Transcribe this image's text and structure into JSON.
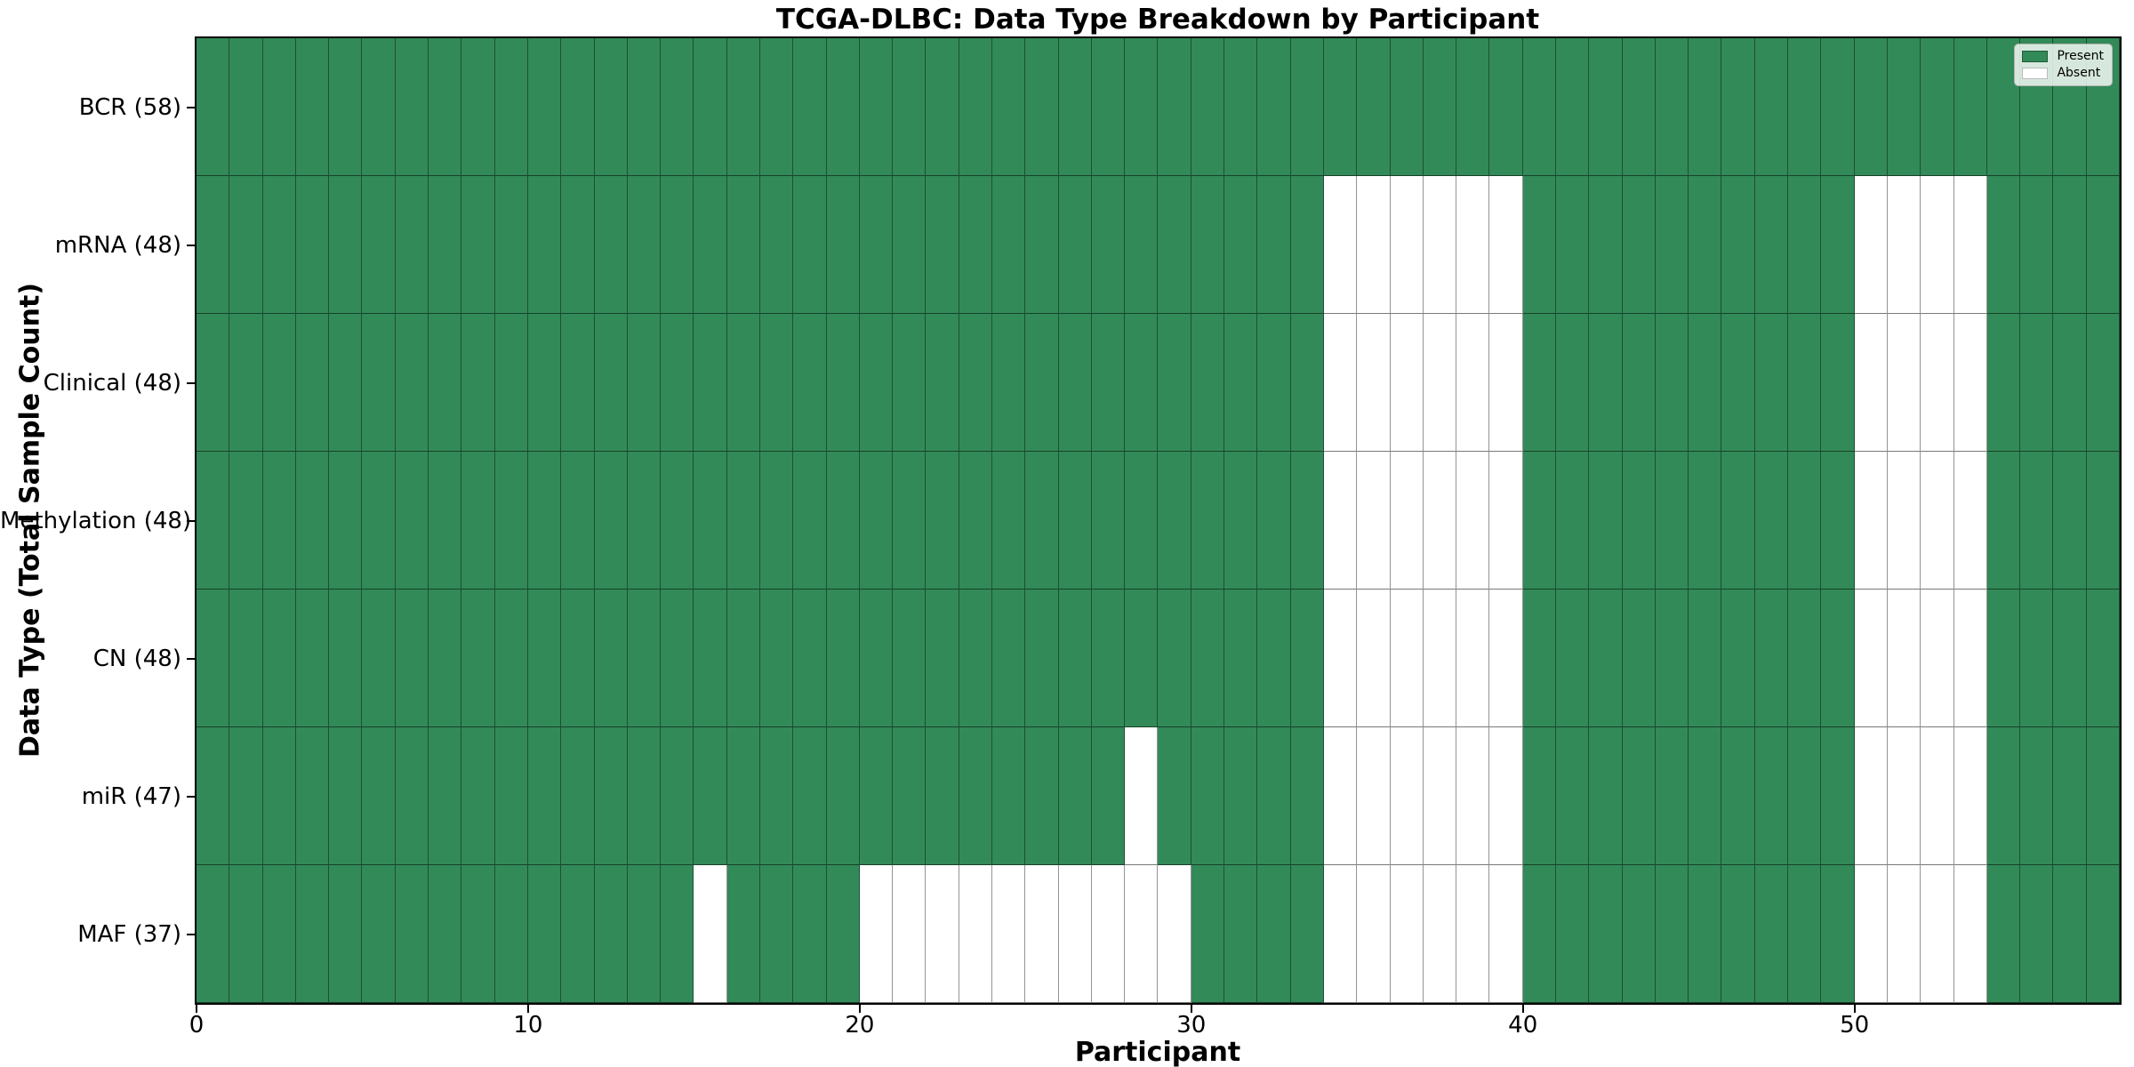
{
  "title": "TCGA-DLBC: Data Type Breakdown by Participant",
  "axes": {
    "xlabel": "Participant",
    "ylabel": "Data Type (Total Sample Count)"
  },
  "legend": {
    "present_label": "Present",
    "absent_label": "Absent"
  },
  "colors": {
    "present": "#328a58",
    "absent": "#ffffff",
    "spine": "#000000",
    "legend_border": "#b3b3b3"
  },
  "chart_data": {
    "type": "heatmap",
    "title": "TCGA-DLBC: Data Type Breakdown by Participant",
    "xlabel": "Participant",
    "ylabel": "Data Type (Total Sample Count)",
    "x_range": [
      0,
      58
    ],
    "n_participants": 58,
    "x_ticks": [
      0,
      10,
      20,
      30,
      40,
      50
    ],
    "grid": true,
    "legend_position": "upper right",
    "legend_entries": [
      "Present",
      "Absent"
    ],
    "value_encoding": {
      "present": 1,
      "absent": 0
    },
    "rows": [
      {
        "name": "BCR",
        "label": "BCR (58)",
        "total_samples": 58,
        "absent_participants": []
      },
      {
        "name": "mRNA",
        "label": "mRNA (48)",
        "total_samples": 48,
        "absent_participants": [
          34,
          35,
          36,
          37,
          38,
          39,
          50,
          51,
          52,
          53
        ]
      },
      {
        "name": "Clinical",
        "label": "Clinical (48)",
        "total_samples": 48,
        "absent_participants": [
          34,
          35,
          36,
          37,
          38,
          39,
          50,
          51,
          52,
          53
        ]
      },
      {
        "name": "Methylation",
        "label": "Methylation (48)",
        "total_samples": 48,
        "absent_participants": [
          34,
          35,
          36,
          37,
          38,
          39,
          50,
          51,
          52,
          53
        ]
      },
      {
        "name": "CN",
        "label": "CN (48)",
        "total_samples": 48,
        "absent_participants": [
          34,
          35,
          36,
          37,
          38,
          39,
          50,
          51,
          52,
          53
        ]
      },
      {
        "name": "miR",
        "label": "miR (47)",
        "total_samples": 47,
        "absent_participants": [
          28,
          34,
          35,
          36,
          37,
          38,
          39,
          50,
          51,
          52,
          53
        ]
      },
      {
        "name": "MAF",
        "label": "MAF (37)",
        "total_samples": 37,
        "absent_participants": [
          15,
          20,
          21,
          22,
          23,
          24,
          25,
          26,
          27,
          28,
          29,
          34,
          35,
          36,
          37,
          38,
          39,
          50,
          51,
          52,
          53
        ]
      }
    ]
  }
}
